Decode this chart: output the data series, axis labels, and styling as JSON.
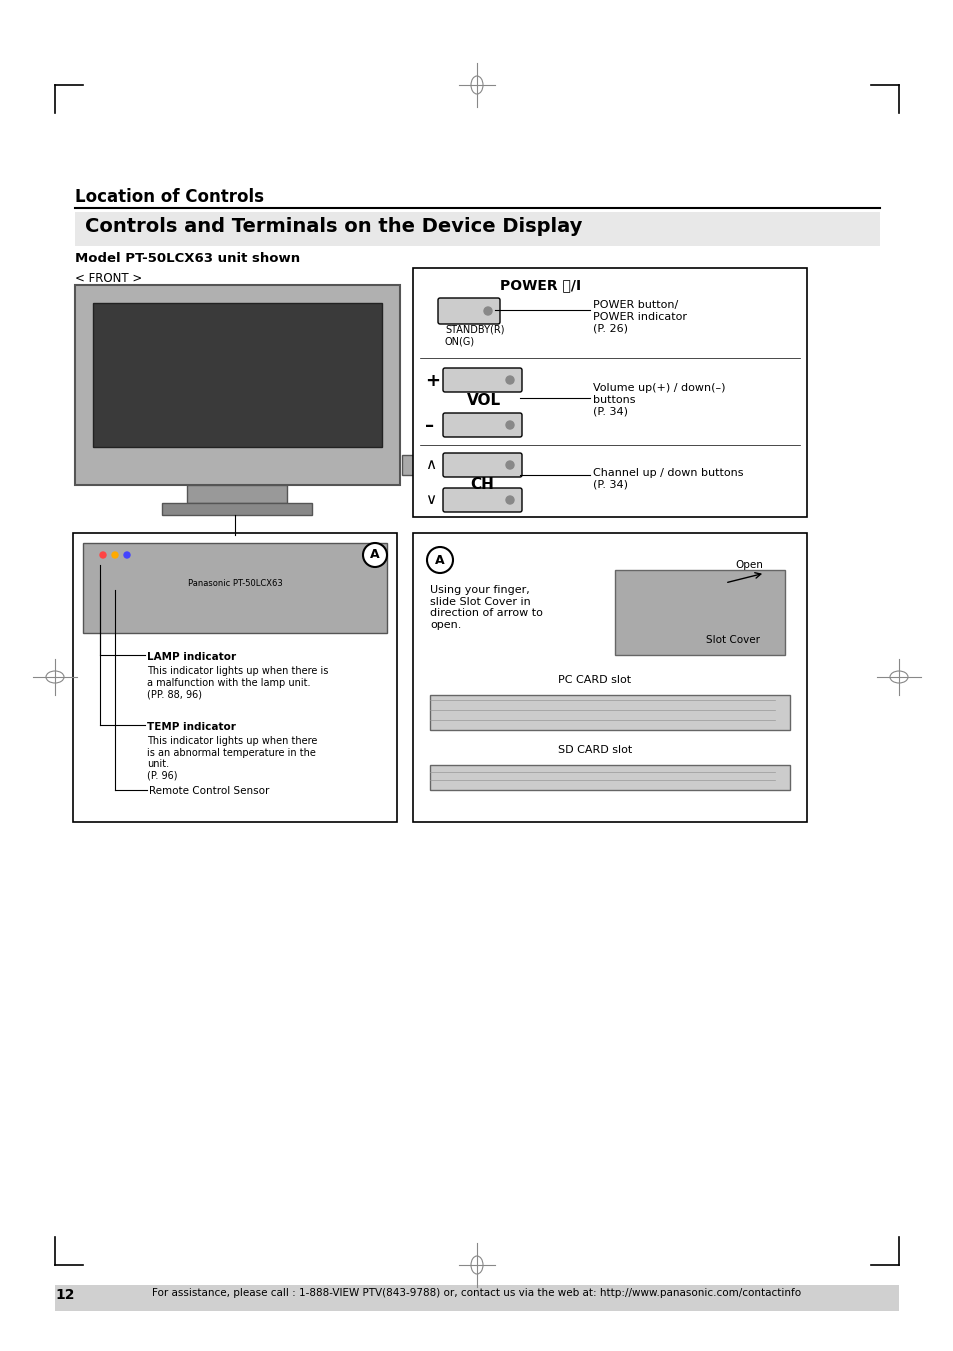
{
  "title1": "Location of Controls",
  "title2": "Controls and Terminals on the Device Display",
  "subtitle": "Model PT-50LCX63 unit shown",
  "front_label": "< FRONT >",
  "power_label": "POWER ⏻/I",
  "standby_label": "STANDBY(R)\nON(G)",
  "power_desc": "POWER button/\nPOWER indicator\n(P. 26)",
  "vol_label": "VOL",
  "vol_desc": "Volume up(+) / down(–)\nbuttons\n(P. 34)",
  "ch_label": "CH",
  "ch_desc": "Channel up / down buttons\n(P. 34)",
  "lamp_title": "LAMP indicator",
  "lamp_desc": "This indicator lights up when there is\na malfunction with the lamp unit.\n(PP. 88, 96)",
  "temp_title": "TEMP indicator",
  "temp_desc": "This indicator lights up when there\nis an abnormal temperature in the\nunit.\n(P. 96)",
  "remote_label": "Remote Control Sensor",
  "circle_a_label": "A",
  "slot_desc": "Using your finger,\nslide Slot Cover in\ndirection of arrow to\nopen.",
  "open_label": "Open",
  "slot_cover_label": "Slot Cover",
  "pc_card_label": "PC CARD slot",
  "sd_card_label": "SD CARD slot",
  "page_number": "12",
  "footer": "For assistance, please call : 1-888-VIEW PTV(843-9788) or, contact us via the web at: http://www.panasonic.com/contactinfo",
  "bg_color": "#ffffff",
  "text_color": "#000000",
  "box_color": "#000000",
  "gray_color": "#888888",
  "light_gray": "#cccccc",
  "footer_bg": "#d0d0d0"
}
